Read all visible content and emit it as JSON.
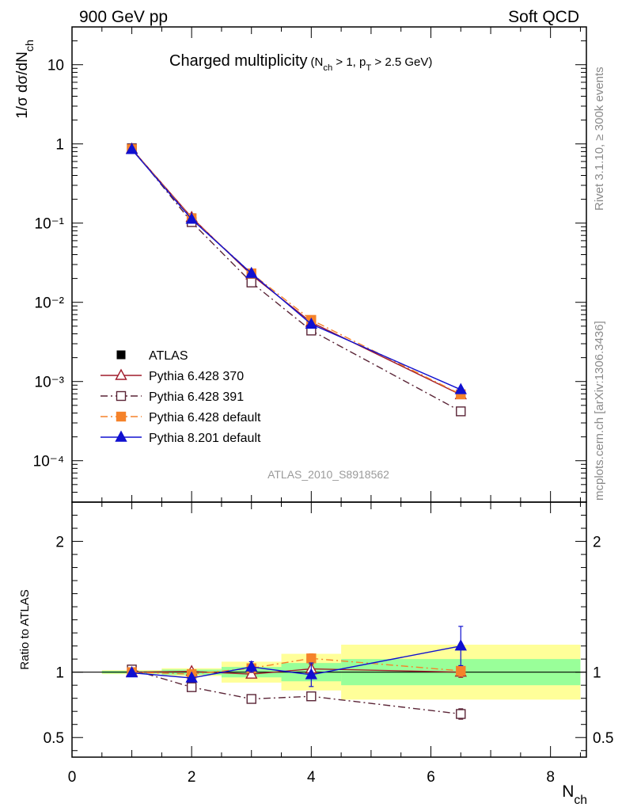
{
  "header": {
    "left": "900 GeV pp",
    "right": "Soft QCD"
  },
  "side_text": {
    "version": "Rivet 3.1.10, ≥ 300k events",
    "source": "mcplots.cern.ch [arXiv:1306.3436]"
  },
  "chart_data": [
    {
      "type": "line",
      "title": "Charged multiplicity",
      "title_cuts": "(N_ch > 1, p_T > 2.5 GeV)",
      "xlabel": "N_ch",
      "ylabel": "1/σ dσ/dN_ch",
      "yscale": "log",
      "xlim": [
        0,
        8.6
      ],
      "ylim": [
        3e-05,
        30
      ],
      "y_ticks": [
        {
          "value": 0.0001,
          "label": "10⁻⁴"
        },
        {
          "value": 0.001,
          "label": "10⁻³"
        },
        {
          "value": 0.01,
          "label": "10⁻²"
        },
        {
          "value": 0.1,
          "label": "10⁻¹"
        },
        {
          "value": 1,
          "label": "1"
        },
        {
          "value": 10,
          "label": "10"
        }
      ],
      "watermark": "ATLAS_2010_S8918562",
      "legend_position": "lower-left",
      "series": [
        {
          "name": "ATLAS",
          "style": "data",
          "color": "#000000",
          "x": [
            1,
            2,
            3,
            4,
            6.5
          ],
          "y": [
            0.86,
            0.117,
            0.0225,
            0.0054,
            0.00068
          ]
        },
        {
          "name": "Pythia 6.428 370",
          "style": "open-triangle-solid",
          "color": "#a01c2c",
          "x": [
            1,
            2,
            3,
            4,
            6.5
          ],
          "y": [
            0.86,
            0.118,
            0.0222,
            0.0056,
            0.00068
          ]
        },
        {
          "name": "Pythia 6.428 391",
          "style": "open-square-dashdot",
          "color": "#5a2436",
          "x": [
            1,
            2,
            3,
            4,
            6.5
          ],
          "y": [
            0.88,
            0.103,
            0.0178,
            0.0044,
            0.00042
          ]
        },
        {
          "name": "Pythia 6.428 default",
          "style": "filled-square-dashdot",
          "color": "#f5822a",
          "x": [
            1,
            2,
            3,
            4,
            6.5
          ],
          "y": [
            0.86,
            0.115,
            0.0232,
            0.006,
            0.00069
          ]
        },
        {
          "name": "Pythia 8.201 default",
          "style": "filled-triangle-solid",
          "color": "#1010d0",
          "x": [
            1,
            2,
            3,
            4,
            6.5
          ],
          "y": [
            0.85,
            0.112,
            0.0232,
            0.0053,
            0.00079
          ]
        }
      ]
    },
    {
      "type": "line",
      "xlabel": "N_ch",
      "ylabel": "Ratio to ATLAS",
      "xlim": [
        0,
        8.6
      ],
      "ylim": [
        0.35,
        2.3
      ],
      "x_ticks": [
        0,
        2,
        4,
        6,
        8
      ],
      "y_ticks": [
        0.5,
        1,
        2
      ],
      "bands": [
        {
          "x0": 0.5,
          "x1": 1.5,
          "inner": [
            0.99,
            1.01
          ],
          "outer": [
            0.985,
            1.015
          ]
        },
        {
          "x0": 1.5,
          "x1": 2.5,
          "inner": [
            0.98,
            1.02
          ],
          "outer": [
            0.97,
            1.03
          ]
        },
        {
          "x0": 2.5,
          "x1": 3.5,
          "inner": [
            0.96,
            1.04
          ],
          "outer": [
            0.92,
            1.08
          ]
        },
        {
          "x0": 3.5,
          "x1": 4.5,
          "inner": [
            0.93,
            1.07
          ],
          "outer": [
            0.86,
            1.14
          ]
        },
        {
          "x0": 4.5,
          "x1": 8.5,
          "inner": [
            0.9,
            1.1
          ],
          "outer": [
            0.79,
            1.21
          ]
        }
      ],
      "series": [
        {
          "name": "Pythia 6.428 370",
          "x": [
            1,
            2,
            3,
            4,
            6.5
          ],
          "y": [
            1.0,
            1.005,
            0.985,
            1.025,
            1.0
          ],
          "err": [
            0.005,
            0.01,
            0.02,
            0.035,
            0.04
          ]
        },
        {
          "name": "Pythia 6.428 391",
          "x": [
            1,
            2,
            3,
            4,
            6.5
          ],
          "y": [
            1.02,
            0.885,
            0.795,
            0.815,
            0.68
          ],
          "err": [
            0.005,
            0.01,
            0.015,
            0.025,
            0.04
          ]
        },
        {
          "name": "Pythia 6.428 default",
          "x": [
            1,
            2,
            3,
            4,
            6.5
          ],
          "y": [
            1.0,
            0.985,
            1.03,
            1.105,
            1.01
          ],
          "err": [
            0.005,
            0.01,
            0.02,
            0.035,
            0.04
          ]
        },
        {
          "name": "Pythia 8.201 default",
          "x": [
            1,
            2,
            3,
            4,
            6.5
          ],
          "y": [
            0.995,
            0.955,
            1.04,
            0.98,
            1.2
          ],
          "err": [
            0.005,
            0.015,
            0.04,
            0.09,
            0.15
          ]
        }
      ]
    }
  ]
}
